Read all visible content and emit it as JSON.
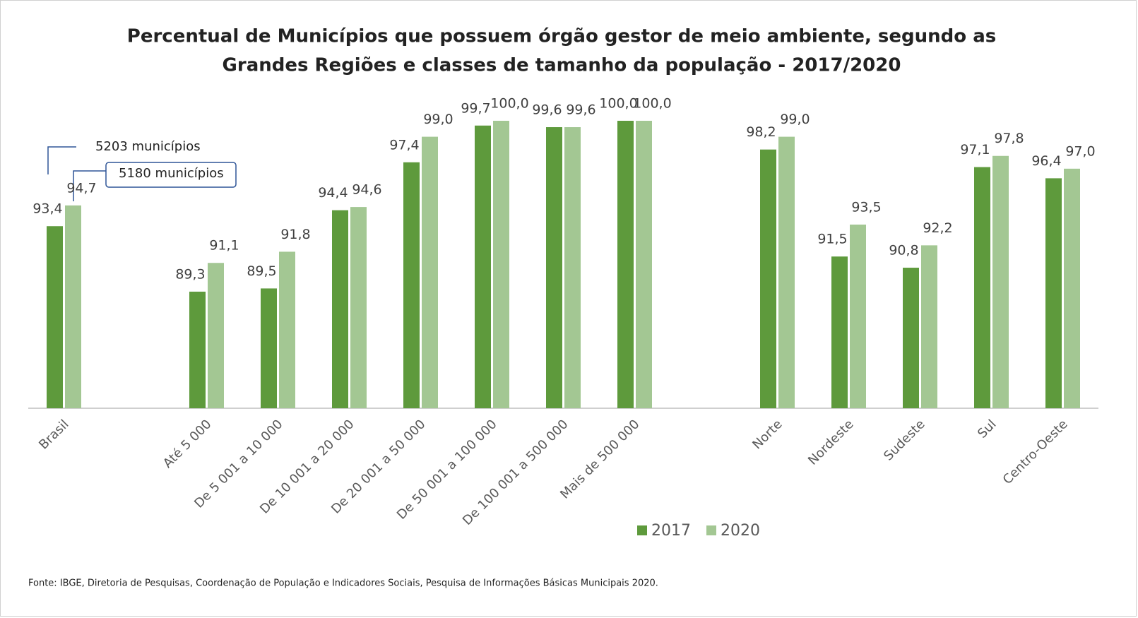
{
  "chart_data": {
    "type": "bar",
    "title": [
      "Percentual de Municípios que possuem órgão gestor de meio ambiente, segundo as",
      "Grandes Regiões e classes  de tamanho da população - 2017/2020"
    ],
    "categories": [
      "Brasil",
      null,
      "Até 5 000",
      "De 5 001 a 10 000",
      "De 10 001 a 20 000",
      "De 20 001 a 50 000",
      "De 50 001 a 100 000",
      "De 100 001 a 500 000",
      "Mais de 500 000",
      null,
      "Norte",
      "Nordeste",
      "Sudeste",
      "Sul",
      "Centro-Oeste"
    ],
    "series": [
      {
        "name": "2017",
        "color": "#5e9a3c",
        "values": [
          93.4,
          null,
          89.3,
          89.5,
          94.4,
          97.4,
          99.7,
          99.6,
          100.0,
          null,
          98.2,
          91.5,
          90.8,
          97.1,
          96.4
        ],
        "value_labels": [
          "93,4",
          null,
          "89,3",
          "89,5",
          "94,4",
          "97,4",
          "99,7",
          "99,6",
          "100,0",
          null,
          "98,2",
          "91,5",
          "90,8",
          "97,1",
          "96,4"
        ]
      },
      {
        "name": "2020",
        "color": "#a3c793",
        "values": [
          94.7,
          null,
          91.1,
          91.8,
          94.6,
          99.0,
          100.0,
          99.6,
          100.0,
          null,
          99.0,
          93.5,
          92.2,
          97.8,
          97.0
        ],
        "value_labels": [
          "94,7",
          null,
          "91,1",
          "91,8",
          "94,6",
          "99,0",
          "100,0",
          "99,6",
          "100,0",
          null,
          "99,0",
          "93,5",
          "92,2",
          "97,8",
          "97,0"
        ]
      }
    ],
    "ylim": [
      82,
      100
    ],
    "annotations": [
      "5203 municípios",
      "5180 municípios"
    ],
    "source": "Fonte:  IBGE, Diretoria de Pesquisas, Coordenação de População e Indicadores Sociais, Pesquisa de Informações  Básicas Municipais 2020."
  }
}
